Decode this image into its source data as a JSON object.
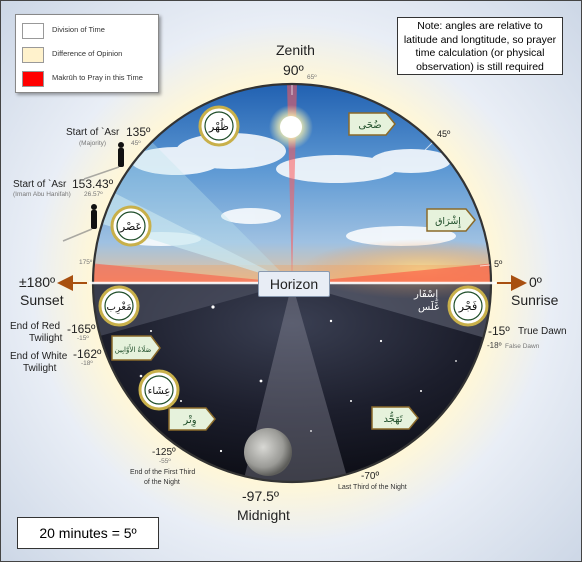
{
  "legend": [
    {
      "label": "Division of Time",
      "color": "#ffffff"
    },
    {
      "label": "Difference of Opinion",
      "color": "#fff2cc"
    },
    {
      "label": "Makrūh to Pray in this Time",
      "color": "#ff0000"
    }
  ],
  "note": {
    "line1": "Note: angles are relative to",
    "line2": "latitude and longtitude, so prayer",
    "line3": "time calculation (or physical",
    "line4": "observation) is still required"
  },
  "scale_note": "20 minutes = 5º",
  "horizon_label": "Horizon",
  "zenith": {
    "title": "Zenith",
    "angle": "90º",
    "sub": "65º"
  },
  "sunset": {
    "angle": "±180º",
    "label": "Sunset"
  },
  "sunrise": {
    "angle": "0º",
    "label": "Sunrise"
  },
  "midnight": {
    "angle": "-97.5º",
    "label": "Midnight"
  },
  "asr_majority": {
    "title": "Start of `Asr",
    "angle": "135º",
    "sub": "(Majority)",
    "sub_angle": "45º"
  },
  "asr_abu_hanifah": {
    "title": "Start of `Asr",
    "angle": "153.43º",
    "sub": "(Imam Abu Hanifah)",
    "sub_angle": "26.57º"
  },
  "red_twilight": {
    "line1": "End of Red",
    "line2": "Twilight",
    "angle": "-165º",
    "sub_angle": "-15º"
  },
  "white_twilight": {
    "line1": "End of White",
    "line2": "Twilight",
    "angle": "-162º",
    "sub_angle": "-18º"
  },
  "true_dawn": {
    "angle": "-15º",
    "label": "True Dawn"
  },
  "false_dawn": {
    "angle": "-18º",
    "label": "False Dawn"
  },
  "first_third": {
    "angle": "-125º",
    "sub_angle": "-55º",
    "line1": "End of the First Third",
    "line2": "of the Night"
  },
  "last_third": {
    "angle": "-70º",
    "label": "Last Third of the Night"
  },
  "small_angles": {
    "a45": "45º",
    "a5": "5º",
    "a175": "175º"
  },
  "prayers": {
    "dhuhr": "ظُهْر",
    "asr": "عَصْر",
    "maghrib": "مَغْرِب",
    "isha": "عِشَاء",
    "fajr": "فَجْر",
    "duha": "ضُحَى",
    "ishraq": "إِشْرَاق",
    "awwabin": "صَلَاةُ الأَوَّابِين",
    "witr": "وِتْر",
    "tahajjud": "تَهَجُّد",
    "isfar": "إِسْفَار",
    "ghalas": "غَلَس"
  },
  "colors": {
    "makruh": "#ff0000",
    "arrow": "#a85010",
    "badge_gold": "#c8b04a",
    "badge_green": "#1e4d28"
  }
}
